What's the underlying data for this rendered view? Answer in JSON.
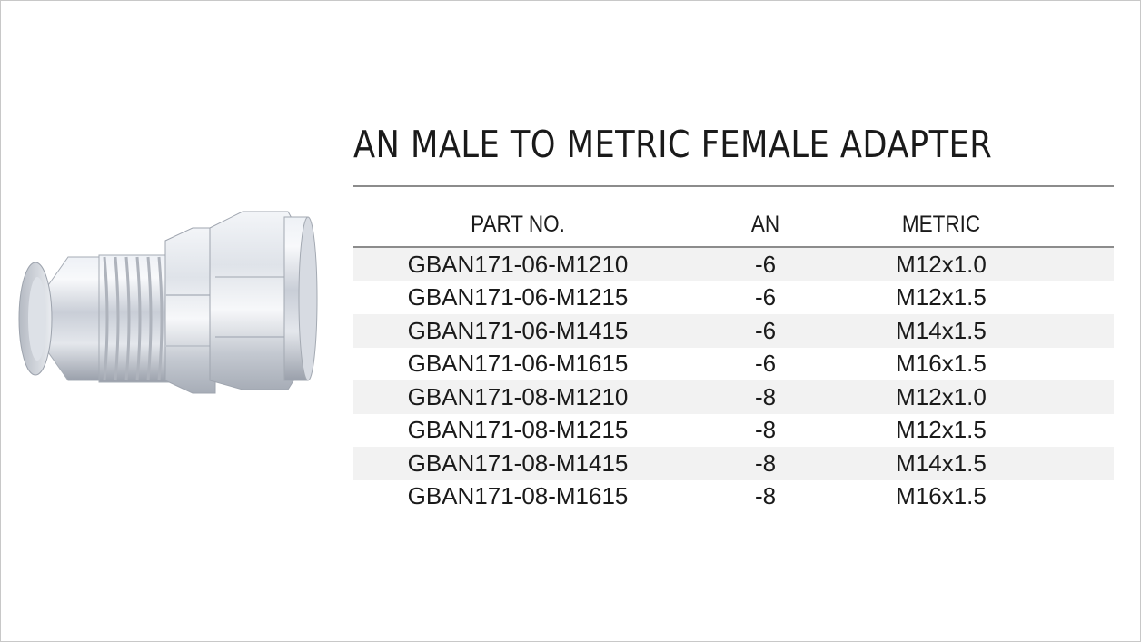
{
  "title": "AN MALE TO METRIC FEMALE ADAPTER",
  "product_image": {
    "icon": "an-male-to-metric-female-adapter-fitting-icon"
  },
  "table": {
    "headers": {
      "part_no": "PART NO.",
      "an": "AN",
      "metric": "METRIC"
    },
    "rows": [
      {
        "part_no": "GBAN171-06-M1210",
        "an": "-6",
        "metric": "M12x1.0"
      },
      {
        "part_no": "GBAN171-06-M1215",
        "an": "-6",
        "metric": "M12x1.5"
      },
      {
        "part_no": "GBAN171-06-M1415",
        "an": "-6",
        "metric": "M14x1.5"
      },
      {
        "part_no": "GBAN171-06-M1615",
        "an": "-6",
        "metric": "M16x1.5"
      },
      {
        "part_no": "GBAN171-08-M1210",
        "an": "-8",
        "metric": "M12x1.0"
      },
      {
        "part_no": "GBAN171-08-M1215",
        "an": "-8",
        "metric": "M12x1.5"
      },
      {
        "part_no": "GBAN171-08-M1415",
        "an": "-8",
        "metric": "M14x1.5"
      },
      {
        "part_no": "GBAN171-08-M1615",
        "an": "-8",
        "metric": "M16x1.5"
      }
    ]
  }
}
